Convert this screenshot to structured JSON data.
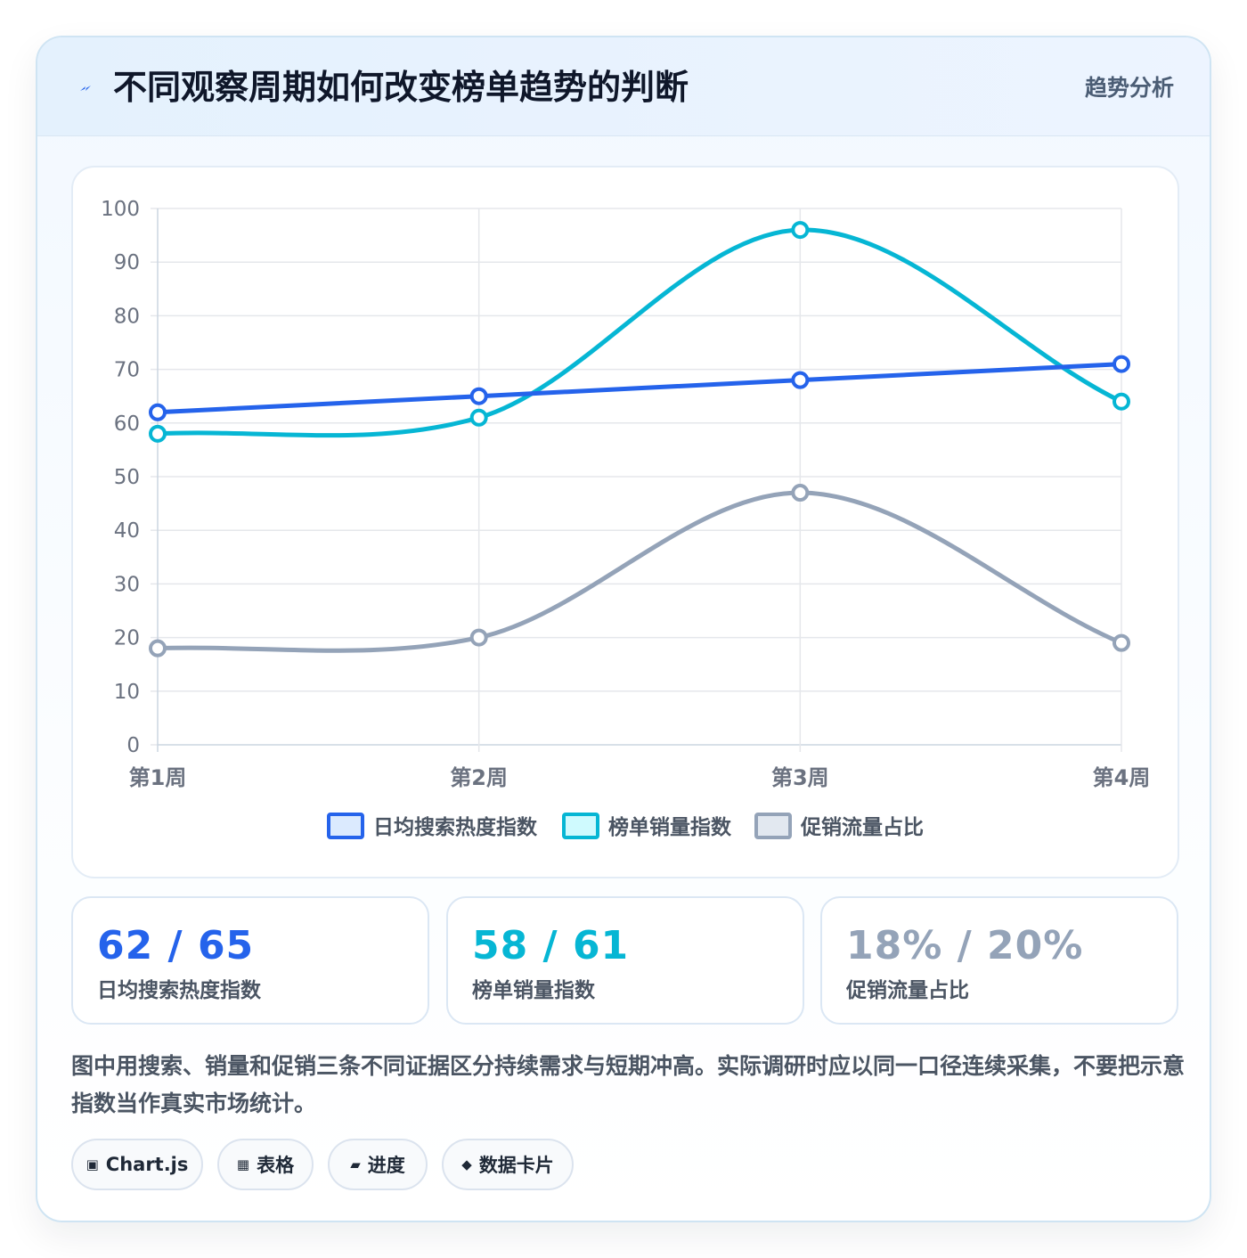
{
  "header": {
    "icon": "bolt-icon",
    "title": "不同观察周期如何改变榜单趋势的判断",
    "tag": "趋势分析"
  },
  "chart_data": {
    "type": "line",
    "title": "",
    "xlabel": "",
    "ylabel": "",
    "categories": [
      "第1周",
      "第2周",
      "第3周",
      "第4周"
    ],
    "ylim": [
      0,
      100
    ],
    "yticks": [
      0,
      10,
      20,
      30,
      40,
      50,
      60,
      70,
      80,
      90,
      100
    ],
    "grid": true,
    "legend_position": "bottom",
    "curve": "smooth",
    "series": [
      {
        "name": "日均搜索热度指数",
        "values": [
          62,
          65,
          68,
          71
        ],
        "color": "#2563eb",
        "fill": "#dbeafe"
      },
      {
        "name": "榜单销量指数",
        "values": [
          58,
          61,
          96,
          64
        ],
        "color": "#06b6d4",
        "fill": "#cffafe"
      },
      {
        "name": "促销流量占比",
        "values": [
          18,
          20,
          47,
          19
        ],
        "color": "#94a3b8",
        "fill": "#e2e8f0"
      }
    ]
  },
  "stats": [
    {
      "value": "62 / 65",
      "label": "日均搜索热度指数",
      "color": "#2563eb"
    },
    {
      "value": "58 / 61",
      "label": "榜单销量指数",
      "color": "#06b6d4"
    },
    {
      "value": "18% / 20%",
      "label": "促销流量占比",
      "color": "#94a3b8"
    }
  ],
  "description": "图中用搜索、销量和促销三条不同证据区分持续需求与短期冲高。实际调研时应以同一口径连续采集，不要把示意指数当作真实市场统计。",
  "tags": [
    {
      "icon": "chart-icon",
      "glyph": "▣",
      "label": "Chart.js"
    },
    {
      "icon": "table-icon",
      "glyph": "▦",
      "label": "表格"
    },
    {
      "icon": "progress-icon",
      "glyph": "▰",
      "label": "进度"
    },
    {
      "icon": "diamond-icon",
      "glyph": "◆",
      "label": "数据卡片"
    }
  ]
}
